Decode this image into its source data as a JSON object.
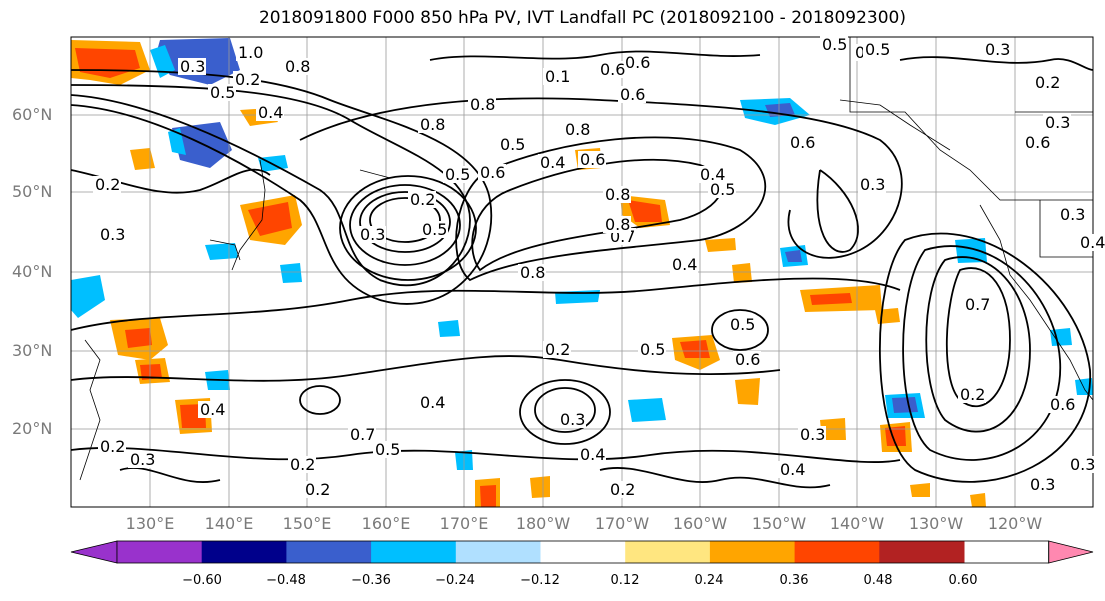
{
  "title": "2018091800 F000 850 hPa PV, IVT Landfall PC (2018092100 - 2018092300)",
  "lat_labels": [
    "60°N",
    "50°N",
    "40°N",
    "30°N",
    "20°N"
  ],
  "lon_labels": [
    "130°E",
    "140°E",
    "150°E",
    "160°E",
    "170°E",
    "180°W",
    "170°W",
    "160°W",
    "150°W",
    "140°W",
    "130°W",
    "120°W"
  ],
  "colorbar": {
    "ticks": [
      "−0.60",
      "−0.48",
      "−0.36",
      "−0.24",
      "−0.12",
      "0.12",
      "0.24",
      "0.36",
      "0.48",
      "0.60"
    ],
    "colors": [
      "#9932cc",
      "#00008b",
      "#3a5fcd",
      "#00bfff",
      "#b0e0ff",
      "#ffffff",
      "#ffe680",
      "#ffa500",
      "#ff4500",
      "#b22222",
      "#ff88b0"
    ]
  },
  "contour_labels": [
    "1.0",
    "0.8",
    "0.4",
    "0.5",
    "0.8",
    "0.1",
    "0.6",
    "0.6",
    "0.5",
    "0.4",
    "0.3",
    "0.2",
    "0.3",
    "0.8",
    "0.5",
    "0.6",
    "0.5",
    "0.8",
    "0.6",
    "0.8",
    "0.4",
    "0.5",
    "0.7",
    "0.8",
    "0.4",
    "0.5",
    "0.5",
    "0.2",
    "0.3",
    "0.4",
    "0.7",
    "0.5",
    "0.4",
    "0.3",
    "0.2",
    "0.2",
    "0.4",
    "0.2",
    "0.3",
    "0.4",
    "0.2",
    "0.3",
    "0.3",
    "0.2",
    "0.3",
    "0.2",
    "0.6",
    "0.8",
    "0.7",
    "0.6",
    "0.4",
    "0.3",
    "0.6",
    "0.3",
    "0.2",
    "0.3",
    "0.4",
    "0.5",
    "0.3",
    "0.2",
    "0.5",
    "0.6",
    "0.6"
  ]
}
